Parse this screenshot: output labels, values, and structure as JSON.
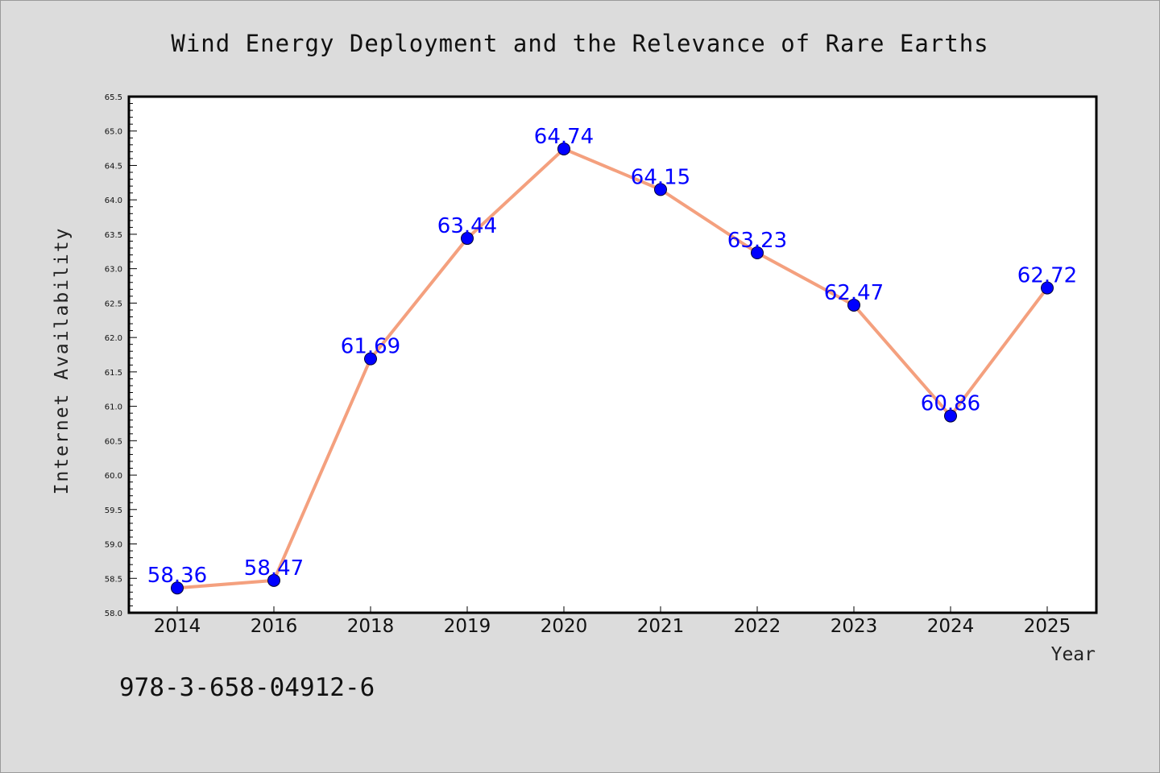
{
  "chart_data": {
    "type": "line",
    "title": "Wind Energy Deployment and the Relevance of Rare Earths",
    "xlabel": "Year",
    "ylabel": "Internet Availability",
    "categories": [
      "2014",
      "2016",
      "2018",
      "2019",
      "2020",
      "2021",
      "2022",
      "2023",
      "2024",
      "2025"
    ],
    "values": [
      58.36,
      58.47,
      61.69,
      63.44,
      64.74,
      64.15,
      63.23,
      62.47,
      60.86,
      62.72
    ],
    "data_labels": [
      "58.36",
      "58.47",
      "61.69",
      "63.44",
      "64.74",
      "64.15",
      "63.23",
      "62.47",
      "60.86",
      "62.72"
    ],
    "ylim": [
      58.0,
      65.5
    ],
    "yticks": [
      "58.0",
      "58.5",
      "59.0",
      "59.5",
      "60.0",
      "60.5",
      "61.0",
      "61.5",
      "62.0",
      "62.5",
      "63.0",
      "63.5",
      "64.0",
      "64.5",
      "65.0",
      "65.5"
    ],
    "grid": false,
    "legend": "none",
    "colors": {
      "line": "#f4a07e",
      "marker": "#0000ff",
      "label": "#0000ff",
      "background": "#dcdcdc",
      "plot_bg": "#ffffff"
    }
  },
  "footer": {
    "isbn": "978-3-658-04912-6"
  }
}
